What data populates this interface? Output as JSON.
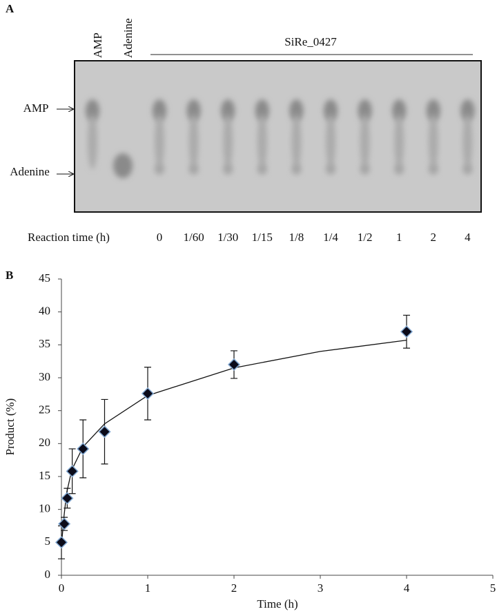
{
  "panel_a": {
    "label": "A",
    "lanes": [
      "AMP",
      "Adenine"
    ],
    "enzyme": "SiRe_0427",
    "rows": [
      "AMP",
      "Adenine"
    ],
    "time_title": "Reaction time (h)",
    "times": [
      "0",
      "1/60",
      "1/30",
      "1/15",
      "1/8",
      "1/4",
      "1/2",
      "1",
      "2",
      "4"
    ]
  },
  "panel_b": {
    "label": "B"
  },
  "chart_data": {
    "type": "scatter",
    "x_label": "Time (h)",
    "y_label": "Product (%)",
    "x": [
      0,
      0.033,
      0.067,
      0.125,
      0.25,
      0.5,
      1,
      2,
      4
    ],
    "values": [
      5,
      7.8,
      11.7,
      15.8,
      19.2,
      21.8,
      27.6,
      32,
      37
    ],
    "errors": [
      2.5,
      1,
      1.5,
      3.4,
      4.4,
      4.9,
      4,
      2.1,
      2.5
    ],
    "color": "#0b0b1a",
    "fit_line": {
      "x": [
        0,
        0.03,
        0.06,
        0.12,
        0.25,
        0.5,
        1,
        2,
        3,
        4
      ],
      "values": [
        4.5,
        9,
        12.5,
        16,
        19.5,
        23,
        27.3,
        31.5,
        34,
        35.7
      ]
    },
    "xlim": [
      0,
      5
    ],
    "xticks": [
      0,
      1,
      2,
      3,
      4,
      5
    ],
    "ylim": [
      0,
      45
    ],
    "yticks": [
      0,
      5,
      10,
      15,
      20,
      25,
      30,
      35,
      40,
      45
    ]
  }
}
